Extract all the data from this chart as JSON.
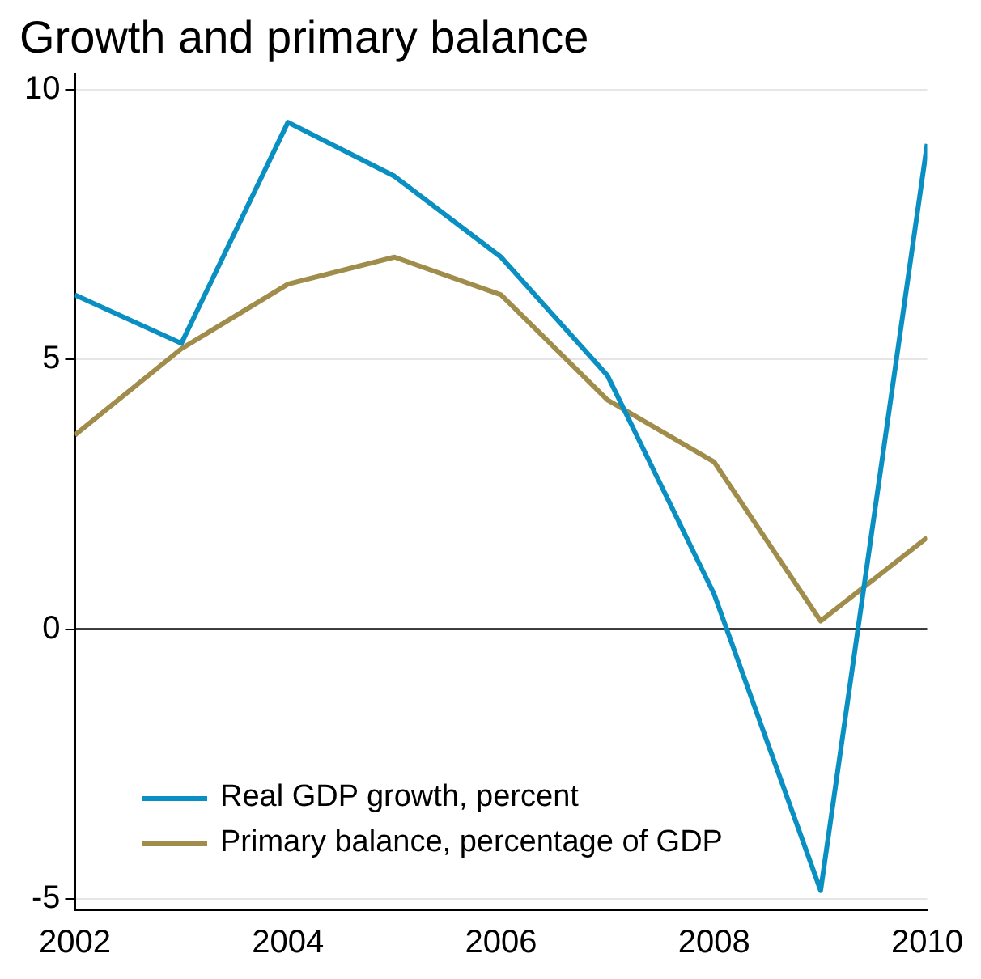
{
  "chart_data": {
    "type": "line",
    "title": "Growth and primary balance",
    "x": [
      2002,
      2003,
      2004,
      2005,
      2006,
      2007,
      2008,
      2009,
      2010
    ],
    "series": [
      {
        "name": "Real GDP growth, percent",
        "color": "#0a8fc2",
        "values": [
          6.2,
          5.3,
          9.4,
          8.4,
          6.9,
          4.7,
          0.65,
          -4.85,
          9.0
        ]
      },
      {
        "name": "Primary balance, percentage of GDP",
        "color": "#a08d4c",
        "values": [
          3.6,
          5.2,
          6.4,
          6.9,
          6.2,
          4.25,
          3.1,
          0.15,
          1.7
        ]
      }
    ],
    "xlim": [
      2002,
      2010
    ],
    "xticks": [
      2002,
      2004,
      2006,
      2008,
      2010
    ],
    "ylim": [
      -5.2,
      10.3
    ],
    "yticks": [
      -5,
      0,
      5,
      10
    ],
    "grid": "y",
    "ref_lines": [
      {
        "axis": "y",
        "value": 0,
        "color": "#000000"
      }
    ],
    "legend": "bottom left",
    "marker": "none",
    "line_style": "solid"
  }
}
